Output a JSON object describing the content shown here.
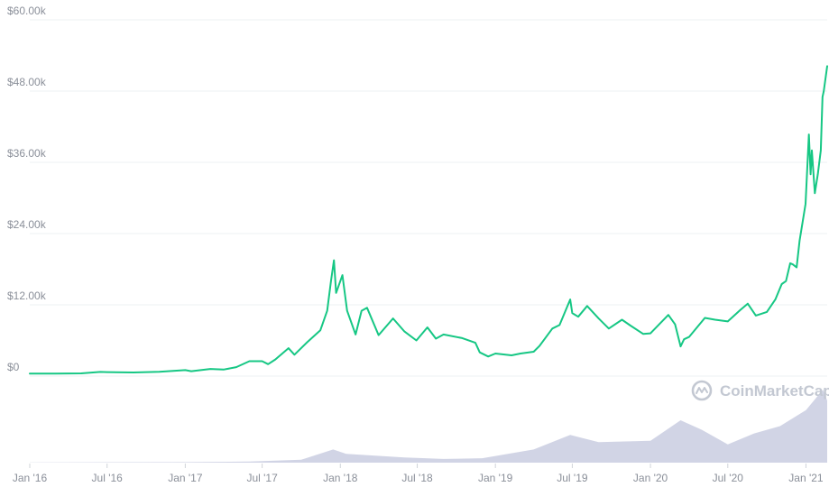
{
  "colors": {
    "line": "#16c784",
    "volume": "#c9cde0",
    "grid": "#eef0f3",
    "tick_text": "#8a8f99",
    "watermark": "#c3c8d2"
  },
  "watermark": {
    "icon": "coinmarketcap-logo-icon",
    "text": "CoinMarketCap"
  },
  "chart_data": {
    "type": "line",
    "y_axis": {
      "ylim": [
        0,
        60000
      ],
      "ticks": [
        {
          "value": 0,
          "label": "$0"
        },
        {
          "value": 12000,
          "label": "$12.00k"
        },
        {
          "value": 24000,
          "label": "$24.00k"
        },
        {
          "value": 36000,
          "label": "$36.00k"
        },
        {
          "value": 48000,
          "label": "$48.00k"
        },
        {
          "value": 60000,
          "label": "$60.00k"
        }
      ]
    },
    "x_axis": {
      "xlim": [
        "2016-01-01",
        "2021-02-20"
      ],
      "ticks": [
        {
          "date": "2016-01-01",
          "label": "Jan '16"
        },
        {
          "date": "2016-07-01",
          "label": "Jul '16"
        },
        {
          "date": "2017-01-01",
          "label": "Jan '17"
        },
        {
          "date": "2017-07-01",
          "label": "Jul '17"
        },
        {
          "date": "2018-01-01",
          "label": "Jan '18"
        },
        {
          "date": "2018-07-01",
          "label": "Jul '18"
        },
        {
          "date": "2019-01-01",
          "label": "Jan '19"
        },
        {
          "date": "2019-07-01",
          "label": "Jul '19"
        },
        {
          "date": "2020-01-01",
          "label": "Jan '20"
        },
        {
          "date": "2020-07-01",
          "label": "Jul '20"
        },
        {
          "date": "2021-01-01",
          "label": "Jan '21"
        }
      ]
    },
    "series": [
      {
        "points": [
          [
            "2016-01-01",
            430
          ],
          [
            "2016-03-01",
            420
          ],
          [
            "2016-05-01",
            450
          ],
          [
            "2016-06-15",
            700
          ],
          [
            "2016-07-01",
            670
          ],
          [
            "2016-09-01",
            610
          ],
          [
            "2016-11-01",
            710
          ],
          [
            "2017-01-01",
            1000
          ],
          [
            "2017-01-15",
            820
          ],
          [
            "2017-03-01",
            1200
          ],
          [
            "2017-04-01",
            1100
          ],
          [
            "2017-05-01",
            1500
          ],
          [
            "2017-06-01",
            2500
          ],
          [
            "2017-07-01",
            2500
          ],
          [
            "2017-07-15",
            2000
          ],
          [
            "2017-08-01",
            2800
          ],
          [
            "2017-09-01",
            4700
          ],
          [
            "2017-09-15",
            3600
          ],
          [
            "2017-10-15",
            5700
          ],
          [
            "2017-11-15",
            7700
          ],
          [
            "2017-12-01",
            11000
          ],
          [
            "2017-12-10",
            16000
          ],
          [
            "2017-12-17",
            19500
          ],
          [
            "2017-12-22",
            14000
          ],
          [
            "2018-01-06",
            17000
          ],
          [
            "2018-01-17",
            11000
          ],
          [
            "2018-02-06",
            7000
          ],
          [
            "2018-02-20",
            11000
          ],
          [
            "2018-03-05",
            11500
          ],
          [
            "2018-04-01",
            6900
          ],
          [
            "2018-05-05",
            9700
          ],
          [
            "2018-06-01",
            7500
          ],
          [
            "2018-06-29",
            6000
          ],
          [
            "2018-07-25",
            8200
          ],
          [
            "2018-08-14",
            6300
          ],
          [
            "2018-09-01",
            7000
          ],
          [
            "2018-10-15",
            6400
          ],
          [
            "2018-11-15",
            5600
          ],
          [
            "2018-11-25",
            4000
          ],
          [
            "2018-12-15",
            3300
          ],
          [
            "2019-01-01",
            3800
          ],
          [
            "2019-02-08",
            3500
          ],
          [
            "2019-03-01",
            3800
          ],
          [
            "2019-04-01",
            4100
          ],
          [
            "2019-04-15",
            5100
          ],
          [
            "2019-05-15",
            8000
          ],
          [
            "2019-06-01",
            8600
          ],
          [
            "2019-06-26",
            12900
          ],
          [
            "2019-07-01",
            10600
          ],
          [
            "2019-07-15",
            10000
          ],
          [
            "2019-08-05",
            11800
          ],
          [
            "2019-09-01",
            9700
          ],
          [
            "2019-09-25",
            8000
          ],
          [
            "2019-10-26",
            9500
          ],
          [
            "2019-11-15",
            8500
          ],
          [
            "2019-12-15",
            7100
          ],
          [
            "2020-01-01",
            7200
          ],
          [
            "2020-02-12",
            10300
          ],
          [
            "2020-02-28",
            8700
          ],
          [
            "2020-03-12",
            5000
          ],
          [
            "2020-03-20",
            6200
          ],
          [
            "2020-04-01",
            6600
          ],
          [
            "2020-05-08",
            9800
          ],
          [
            "2020-06-01",
            9500
          ],
          [
            "2020-07-01",
            9200
          ],
          [
            "2020-07-30",
            11100
          ],
          [
            "2020-08-17",
            12200
          ],
          [
            "2020-09-05",
            10200
          ],
          [
            "2020-10-01",
            10800
          ],
          [
            "2020-10-21",
            12900
          ],
          [
            "2020-11-05",
            15500
          ],
          [
            "2020-11-15",
            16000
          ],
          [
            "2020-11-25",
            19000
          ],
          [
            "2020-12-01",
            18800
          ],
          [
            "2020-12-10",
            18300
          ],
          [
            "2020-12-17",
            22800
          ],
          [
            "2020-12-31",
            29000
          ],
          [
            "2021-01-08",
            40700
          ],
          [
            "2021-01-12",
            34000
          ],
          [
            "2021-01-15",
            38000
          ],
          [
            "2021-01-22",
            30800
          ],
          [
            "2021-01-29",
            34000
          ],
          [
            "2021-02-05",
            38000
          ],
          [
            "2021-02-09",
            47000
          ],
          [
            "2021-02-12",
            48000
          ],
          [
            "2021-02-20",
            52200
          ]
        ]
      }
    ],
    "volume": {
      "shown": true,
      "points": [
        [
          "2016-01-01",
          0.004
        ],
        [
          "2017-01-01",
          0.008
        ],
        [
          "2017-06-01",
          0.015
        ],
        [
          "2017-10-01",
          0.04
        ],
        [
          "2017-12-15",
          0.18
        ],
        [
          "2018-01-15",
          0.12
        ],
        [
          "2018-06-01",
          0.07
        ],
        [
          "2018-09-01",
          0.05
        ],
        [
          "2018-12-01",
          0.06
        ],
        [
          "2019-04-01",
          0.18
        ],
        [
          "2019-06-26",
          0.38
        ],
        [
          "2019-09-01",
          0.28
        ],
        [
          "2020-01-01",
          0.3
        ],
        [
          "2020-03-12",
          0.58
        ],
        [
          "2020-05-01",
          0.45
        ],
        [
          "2020-07-01",
          0.25
        ],
        [
          "2020-09-01",
          0.4
        ],
        [
          "2020-11-01",
          0.5
        ],
        [
          "2021-01-01",
          0.72
        ],
        [
          "2021-02-10",
          1.0
        ],
        [
          "2021-02-20",
          0.85
        ]
      ]
    }
  }
}
